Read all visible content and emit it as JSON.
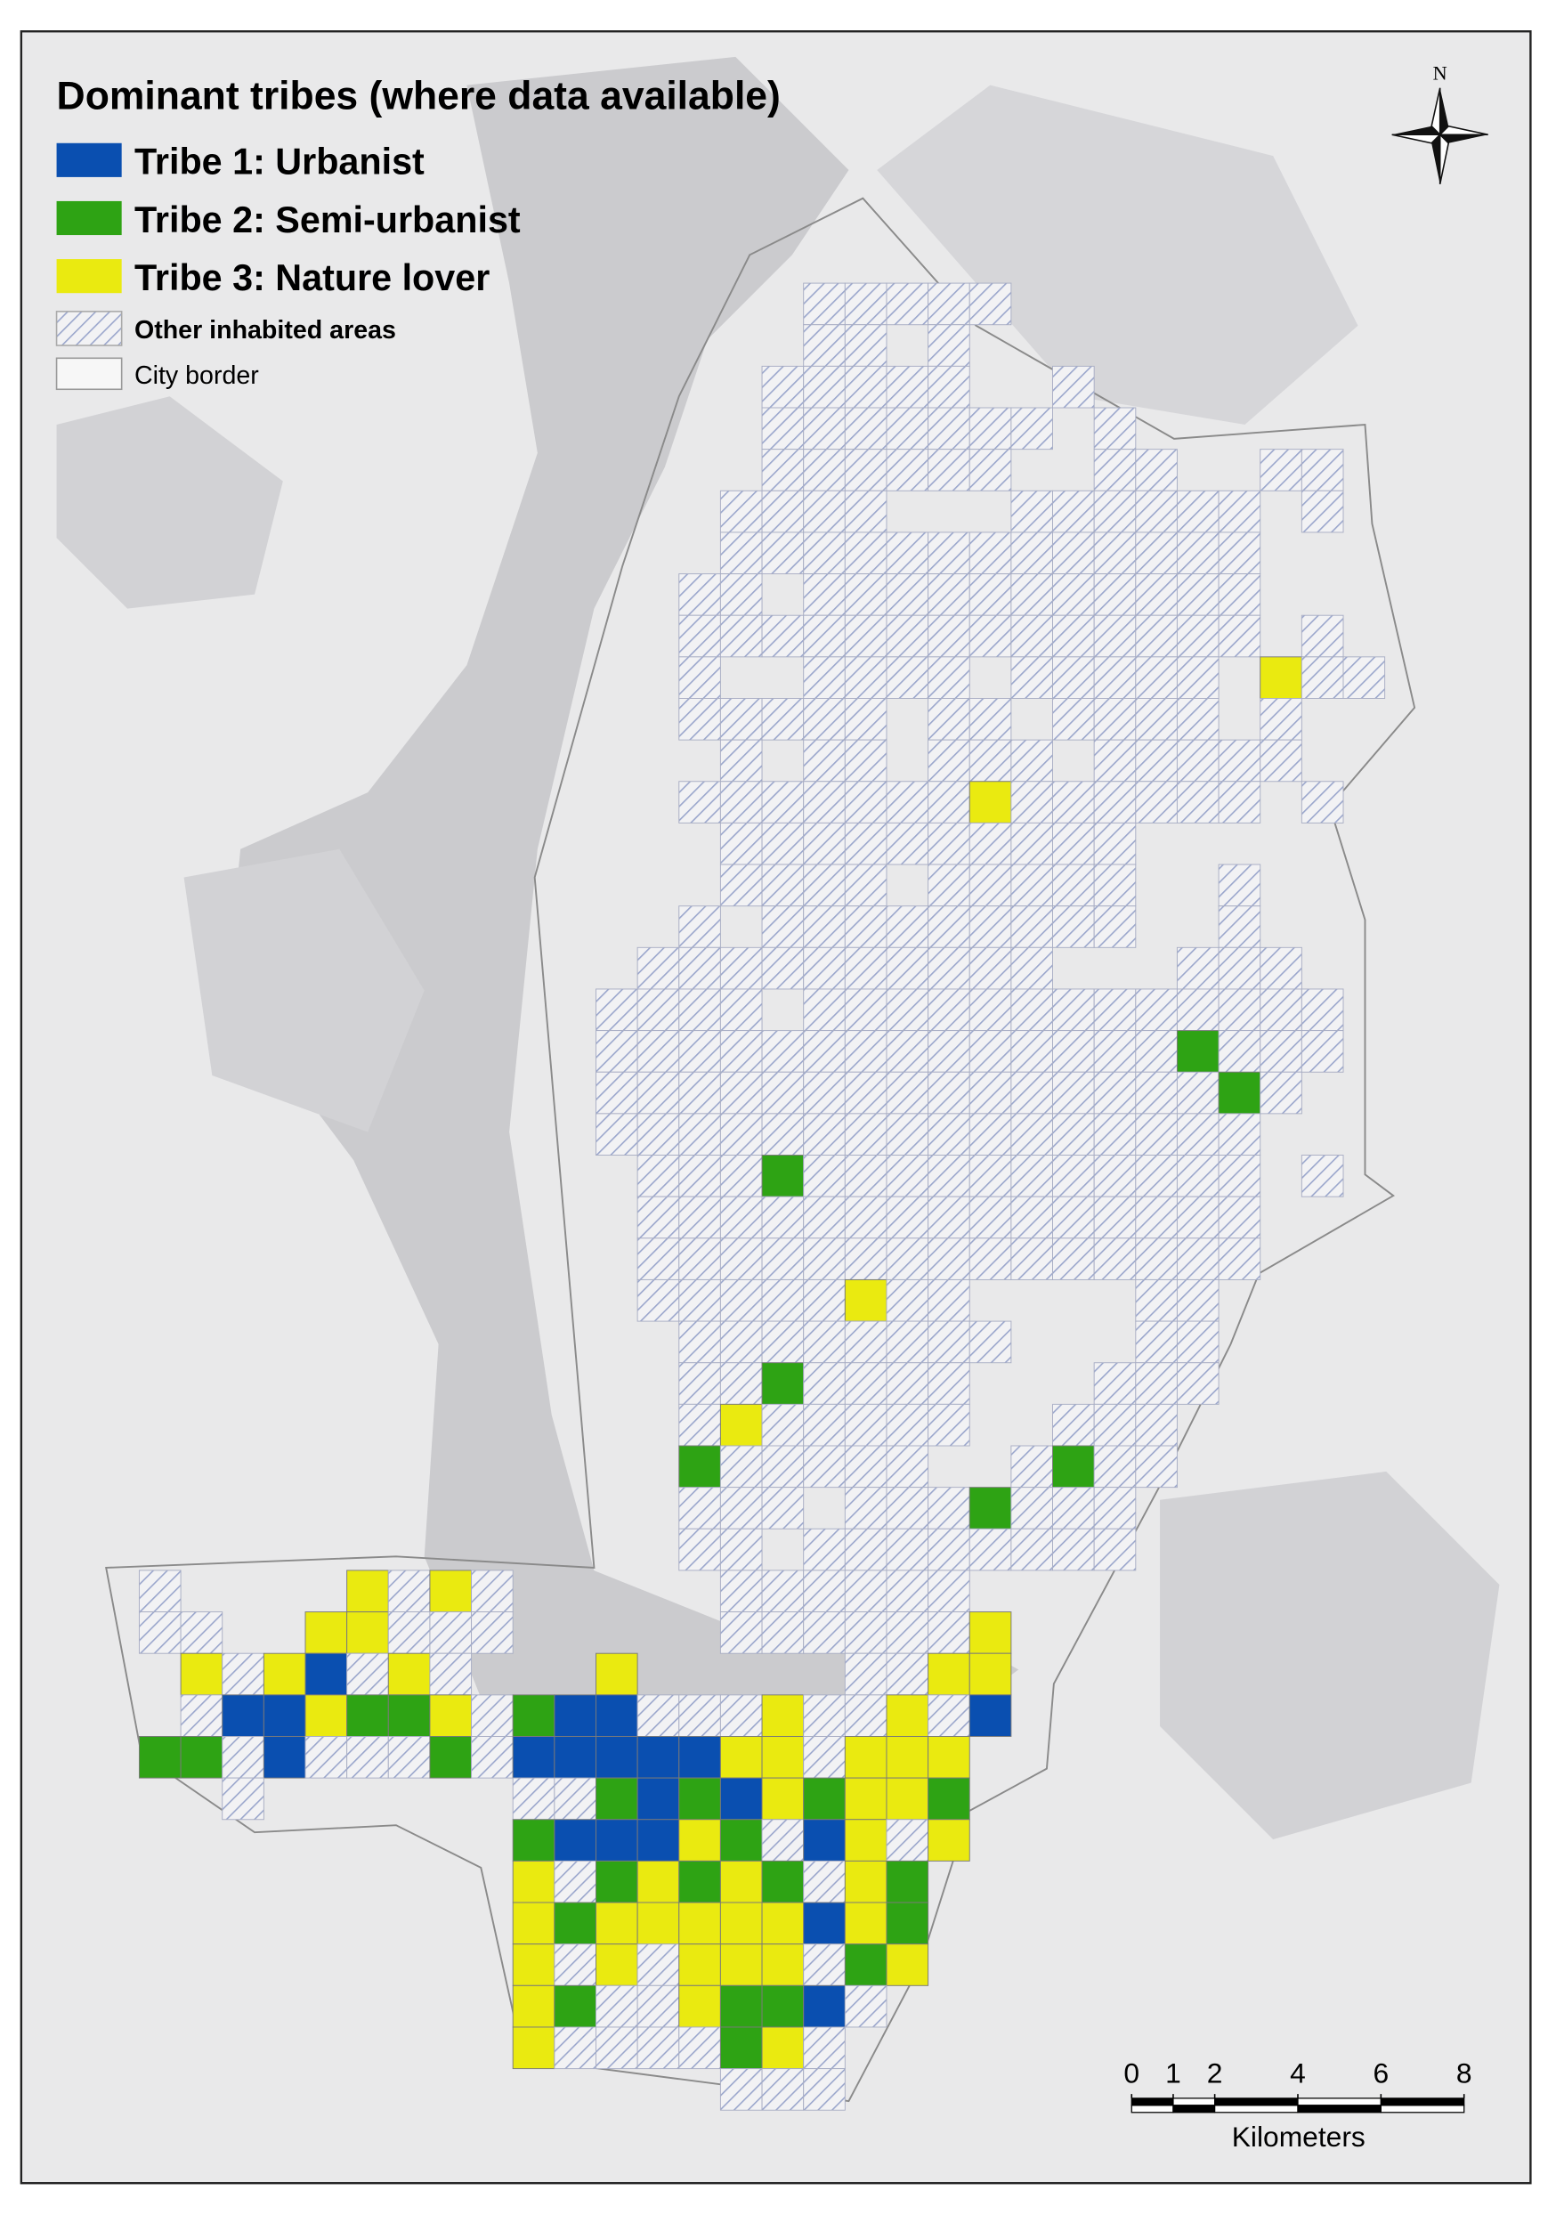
{
  "legend": {
    "title": "Dominant tribes (where data available)",
    "items": [
      {
        "label": "Tribe 1: Urbanist",
        "color": "#0a4fb0"
      },
      {
        "label": "Tribe 2: Semi-urbanist",
        "color": "#2ea314"
      },
      {
        "label": "Tribe 3: Nature lover",
        "color": "#eaea10"
      },
      {
        "label": "Other inhabited areas"
      },
      {
        "label": "City border"
      }
    ]
  },
  "north_arrow": {
    "label": "N"
  },
  "scale_bar": {
    "ticks": [
      0,
      1,
      2,
      4,
      6,
      8
    ],
    "unit": "Kilometers"
  }
}
